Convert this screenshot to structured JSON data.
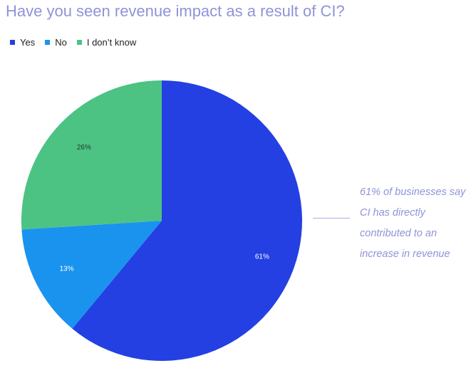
{
  "chart_data": {
    "type": "pie",
    "title": "Have you seen revenue impact as a result of CI?",
    "categories": [
      "Yes",
      "No",
      "I don’t know"
    ],
    "values": [
      61,
      13,
      26
    ],
    "labels": [
      "61%",
      "13%",
      "26%"
    ],
    "colors": [
      "#2440e3",
      "#1a93ef",
      "#4cc383"
    ],
    "label_colors": [
      "#ffffff",
      "#ffffff",
      "#1c3a26"
    ],
    "legend_position": "top-left",
    "annotation": "61% of businesses say CI has directly contributed to an increase in revenue"
  }
}
